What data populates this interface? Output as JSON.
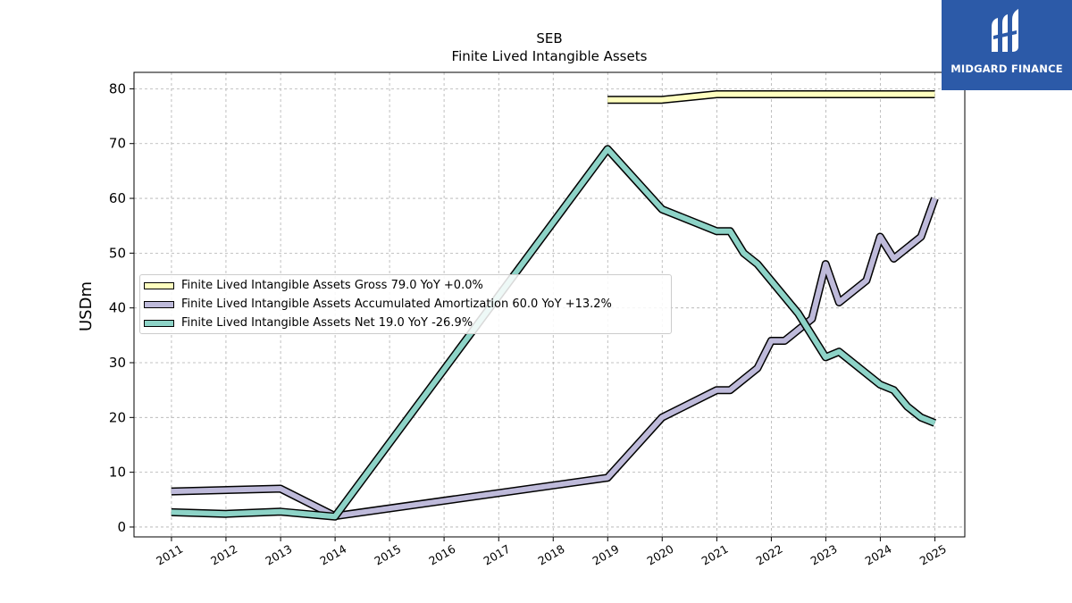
{
  "chart_data": {
    "type": "line",
    "title": "SEB",
    "subtitle": "Finite Lived Intangible Assets",
    "ylabel": "USDm",
    "xlabel": "",
    "xlim": [
      "2010-04-25",
      "2025-07-20"
    ],
    "ylim": [
      -1.8,
      83.0
    ],
    "x_ticks": [
      "2011",
      "2012",
      "2013",
      "2014",
      "2015",
      "2016",
      "2017",
      "2018",
      "2019",
      "2020",
      "2021",
      "2022",
      "2023",
      "2024",
      "2025"
    ],
    "y_ticks": [
      0,
      10,
      20,
      30,
      40,
      50,
      60,
      70,
      80
    ],
    "grid": true,
    "legend_position": "center-left",
    "series": [
      {
        "name": "Finite Lived Intangible Assets Gross",
        "legend_label": "Finite Lived Intangible Assets Gross  79.0 YoY +0.0%",
        "color": "#ffffbf",
        "points": [
          [
            "2018-12-31",
            78.0
          ],
          [
            "2019-12-31",
            78.0
          ],
          [
            "2020-12-31",
            79.0
          ],
          [
            "2021-03-31",
            79.0
          ],
          [
            "2021-06-30",
            79.0
          ],
          [
            "2021-09-30",
            79.0
          ],
          [
            "2021-12-31",
            79.0
          ],
          [
            "2022-03-31",
            79.0
          ],
          [
            "2022-06-30",
            79.0
          ],
          [
            "2022-09-30",
            79.0
          ],
          [
            "2022-12-31",
            79.0
          ],
          [
            "2023-03-31",
            79.0
          ],
          [
            "2023-06-30",
            79.0
          ],
          [
            "2023-09-30",
            79.0
          ],
          [
            "2023-12-31",
            79.0
          ],
          [
            "2024-03-31",
            79.0
          ],
          [
            "2024-06-30",
            79.0
          ],
          [
            "2024-09-30",
            79.0
          ],
          [
            "2024-12-31",
            79.0
          ]
        ]
      },
      {
        "name": "Finite Lived Intangible Assets Accumulated Amortization",
        "legend_label": "Finite Lived Intangible Assets Accumulated Amortization  60.0 YoY +13.2%",
        "color": "#bebada",
        "points": [
          [
            "2010-12-31",
            6.5
          ],
          [
            "2012-12-31",
            7.0
          ],
          [
            "2013-12-31",
            2.0
          ],
          [
            "2018-12-31",
            9.0
          ],
          [
            "2019-12-31",
            20.0
          ],
          [
            "2020-12-31",
            25.0
          ],
          [
            "2021-03-31",
            25.0
          ],
          [
            "2021-09-30",
            29.0
          ],
          [
            "2021-12-31",
            34.0
          ],
          [
            "2022-03-31",
            34.0
          ],
          [
            "2022-09-30",
            38.0
          ],
          [
            "2022-12-31",
            48.0
          ],
          [
            "2023-03-31",
            41.0
          ],
          [
            "2023-09-30",
            45.0
          ],
          [
            "2023-12-31",
            53.0
          ],
          [
            "2024-03-31",
            49.0
          ],
          [
            "2024-09-30",
            53.0
          ],
          [
            "2024-12-31",
            60.0
          ]
        ]
      },
      {
        "name": "Finite Lived Intangible Assets Net",
        "legend_label": "Finite Lived Intangible Assets Net  19.0 YoY -26.9%",
        "color": "#8dd3c7",
        "points": [
          [
            "2010-12-31",
            2.7
          ],
          [
            "2011-12-31",
            2.4
          ],
          [
            "2012-12-31",
            2.8
          ],
          [
            "2013-12-31",
            1.9
          ],
          [
            "2018-12-31",
            69.0
          ],
          [
            "2019-12-31",
            58.0
          ],
          [
            "2020-12-31",
            54.0
          ],
          [
            "2021-03-31",
            54.0
          ],
          [
            "2021-06-30",
            50.0
          ],
          [
            "2021-09-30",
            48.0
          ],
          [
            "2022-06-30",
            39.0
          ],
          [
            "2022-12-31",
            31.0
          ],
          [
            "2023-03-31",
            32.0
          ],
          [
            "2023-12-31",
            26.0
          ],
          [
            "2024-03-31",
            25.0
          ],
          [
            "2024-06-30",
            22.0
          ],
          [
            "2024-09-30",
            20.0
          ],
          [
            "2024-12-31",
            19.0
          ]
        ]
      }
    ]
  },
  "logo": {
    "name": "MIDGARD FINANCE",
    "color": "#2c5aa8"
  }
}
